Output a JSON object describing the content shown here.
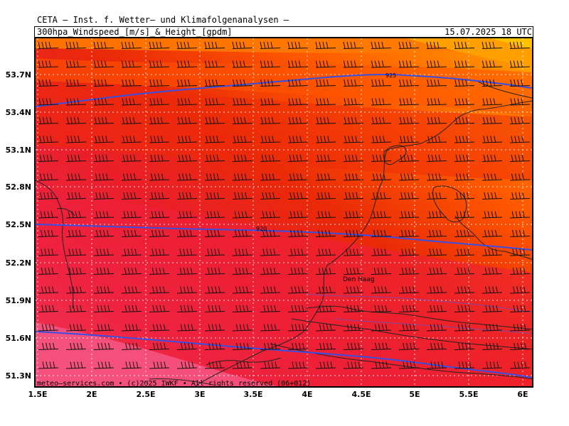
{
  "header": {
    "title": "CETA – Inst. f. Wetter– und Klimafolgenanalysen –",
    "subtitle": "300hpa_Windspeed_[m/s]_&_Height_[gpdm]",
    "datetime": "15.07.2025  18 UTC"
  },
  "map": {
    "latitude_labels": [
      "53.7N",
      "53.4N",
      "53.1N",
      "52.8N",
      "52.5N",
      "52.2N",
      "51.9N",
      "51.6N",
      "51.3N"
    ],
    "longitude_labels": [
      "1.5E",
      "2E",
      "2.5E",
      "3E",
      "3.5E",
      "4E",
      "4.5E",
      "5E",
      "5.5E",
      "6E"
    ],
    "contours": [
      {
        "label": "925"
      },
      {
        "label": "920"
      },
      {
        "label": "915"
      }
    ],
    "city_label": "Den Haag",
    "colors": {
      "contour": "#3a4fe0",
      "coast": "#222222",
      "grid": "#ffffff",
      "barb": "#111111",
      "wind_fill_high": "#ffc000",
      "wind_fill_mid": "#e8240a",
      "wind_fill_low": "#f04a6a"
    }
  },
  "footer": {
    "copyright": "meteo–services.com • (c)2025 IWKF • All rights reserved (06+012)"
  }
}
